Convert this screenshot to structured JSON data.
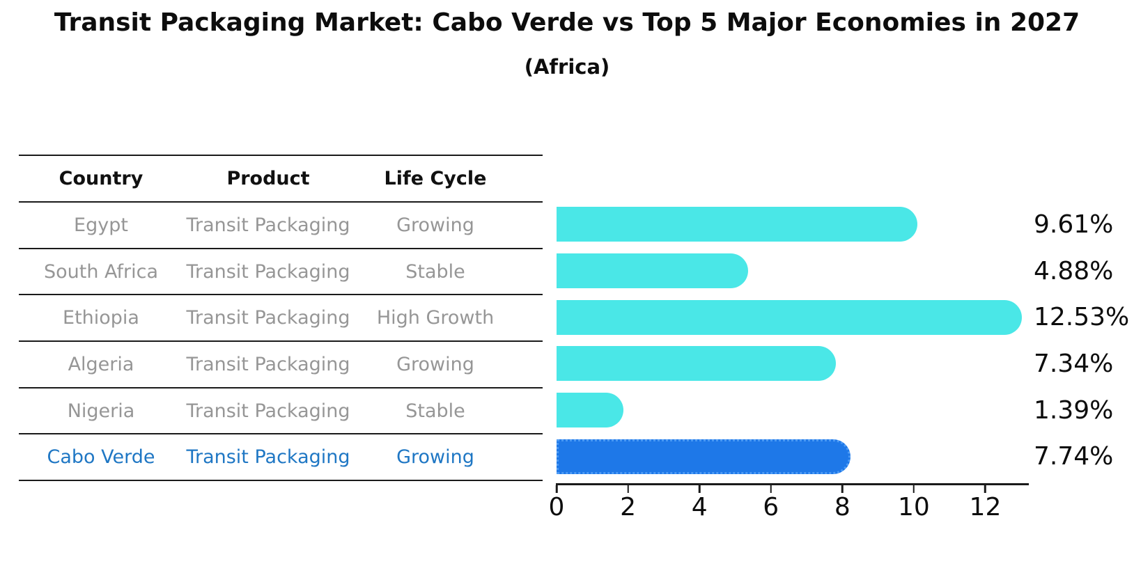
{
  "title": "Transit Packaging Market: Cabo Verde vs Top 5 Major Economies in 2027",
  "subtitle": "(Africa)",
  "table": {
    "headers": {
      "country": "Country",
      "product": "Product",
      "life_cycle": "Life Cycle"
    },
    "rows": [
      {
        "country": "Egypt",
        "product": "Transit Packaging",
        "life_cycle": "Growing"
      },
      {
        "country": "South Africa",
        "product": "Transit Packaging",
        "life_cycle": "Stable"
      },
      {
        "country": "Ethiopia",
        "product": "Transit Packaging",
        "life_cycle": "High Growth"
      },
      {
        "country": "Algeria",
        "product": "Transit Packaging",
        "life_cycle": "Growing"
      },
      {
        "country": "Nigeria",
        "product": "Transit Packaging",
        "life_cycle": "Stable"
      },
      {
        "country": "Cabo Verde",
        "product": "Transit Packaging",
        "life_cycle": "Growing"
      }
    ]
  },
  "chart_data": {
    "type": "bar",
    "orientation": "horizontal",
    "title": "Transit Packaging Market: Cabo Verde vs Top 5 Major Economies in 2027 (Africa)",
    "categories": [
      "Egypt",
      "South Africa",
      "Ethiopia",
      "Algeria",
      "Nigeria",
      "Cabo Verde"
    ],
    "values": [
      9.61,
      4.88,
      12.53,
      7.34,
      1.39,
      7.74
    ],
    "labels": [
      "9.61%",
      "4.88%",
      "12.53%",
      "7.34%",
      "1.39%",
      "7.74%"
    ],
    "unit": "%",
    "xticks": [
      0,
      2,
      4,
      6,
      8,
      10,
      12
    ],
    "xlim": [
      0,
      13.2
    ],
    "grid": false,
    "legend": false,
    "bar_color": "#4ae7e7",
    "highlight_color": "#1e78e8",
    "highlight_border_color": "#4d9bf5",
    "highlight_index": 5,
    "highlight_category": "Cabo Verde"
  },
  "colors": {
    "table_line": "#1a1a1a",
    "table_text_muted": "#969696",
    "table_text_highlight": "#1f77c4",
    "text_primary": "#0d0d0d"
  }
}
